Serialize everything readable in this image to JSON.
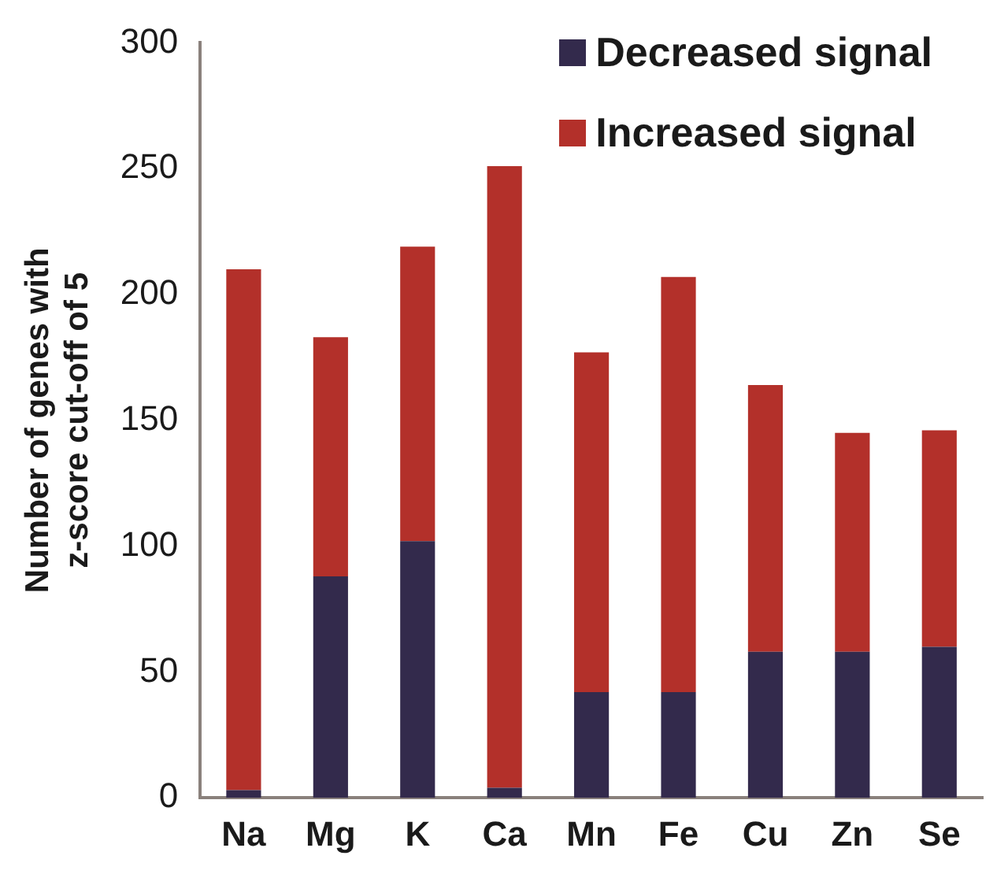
{
  "chart_data": {
    "type": "bar",
    "stacked": true,
    "ylabel": "Number of genes with z-score cut-off of 5",
    "categories": [
      "Na",
      "Mg",
      "K",
      "Ca",
      "Mn",
      "Fe",
      "Cu",
      "Zn",
      "Se"
    ],
    "series": [
      {
        "name": "Decreased signal",
        "color": "#332a4c",
        "values": [
          3,
          88,
          102,
          4,
          42,
          42,
          58,
          58,
          60
        ]
      },
      {
        "name": "Increased signal",
        "color": "#b3302a",
        "values": [
          207,
          95,
          117,
          247,
          135,
          165,
          106,
          87,
          86
        ]
      }
    ],
    "ylim": [
      0,
      300
    ],
    "yticks": [
      0,
      50,
      100,
      150,
      200,
      250,
      300
    ],
    "grid": false,
    "legend": "top right"
  }
}
